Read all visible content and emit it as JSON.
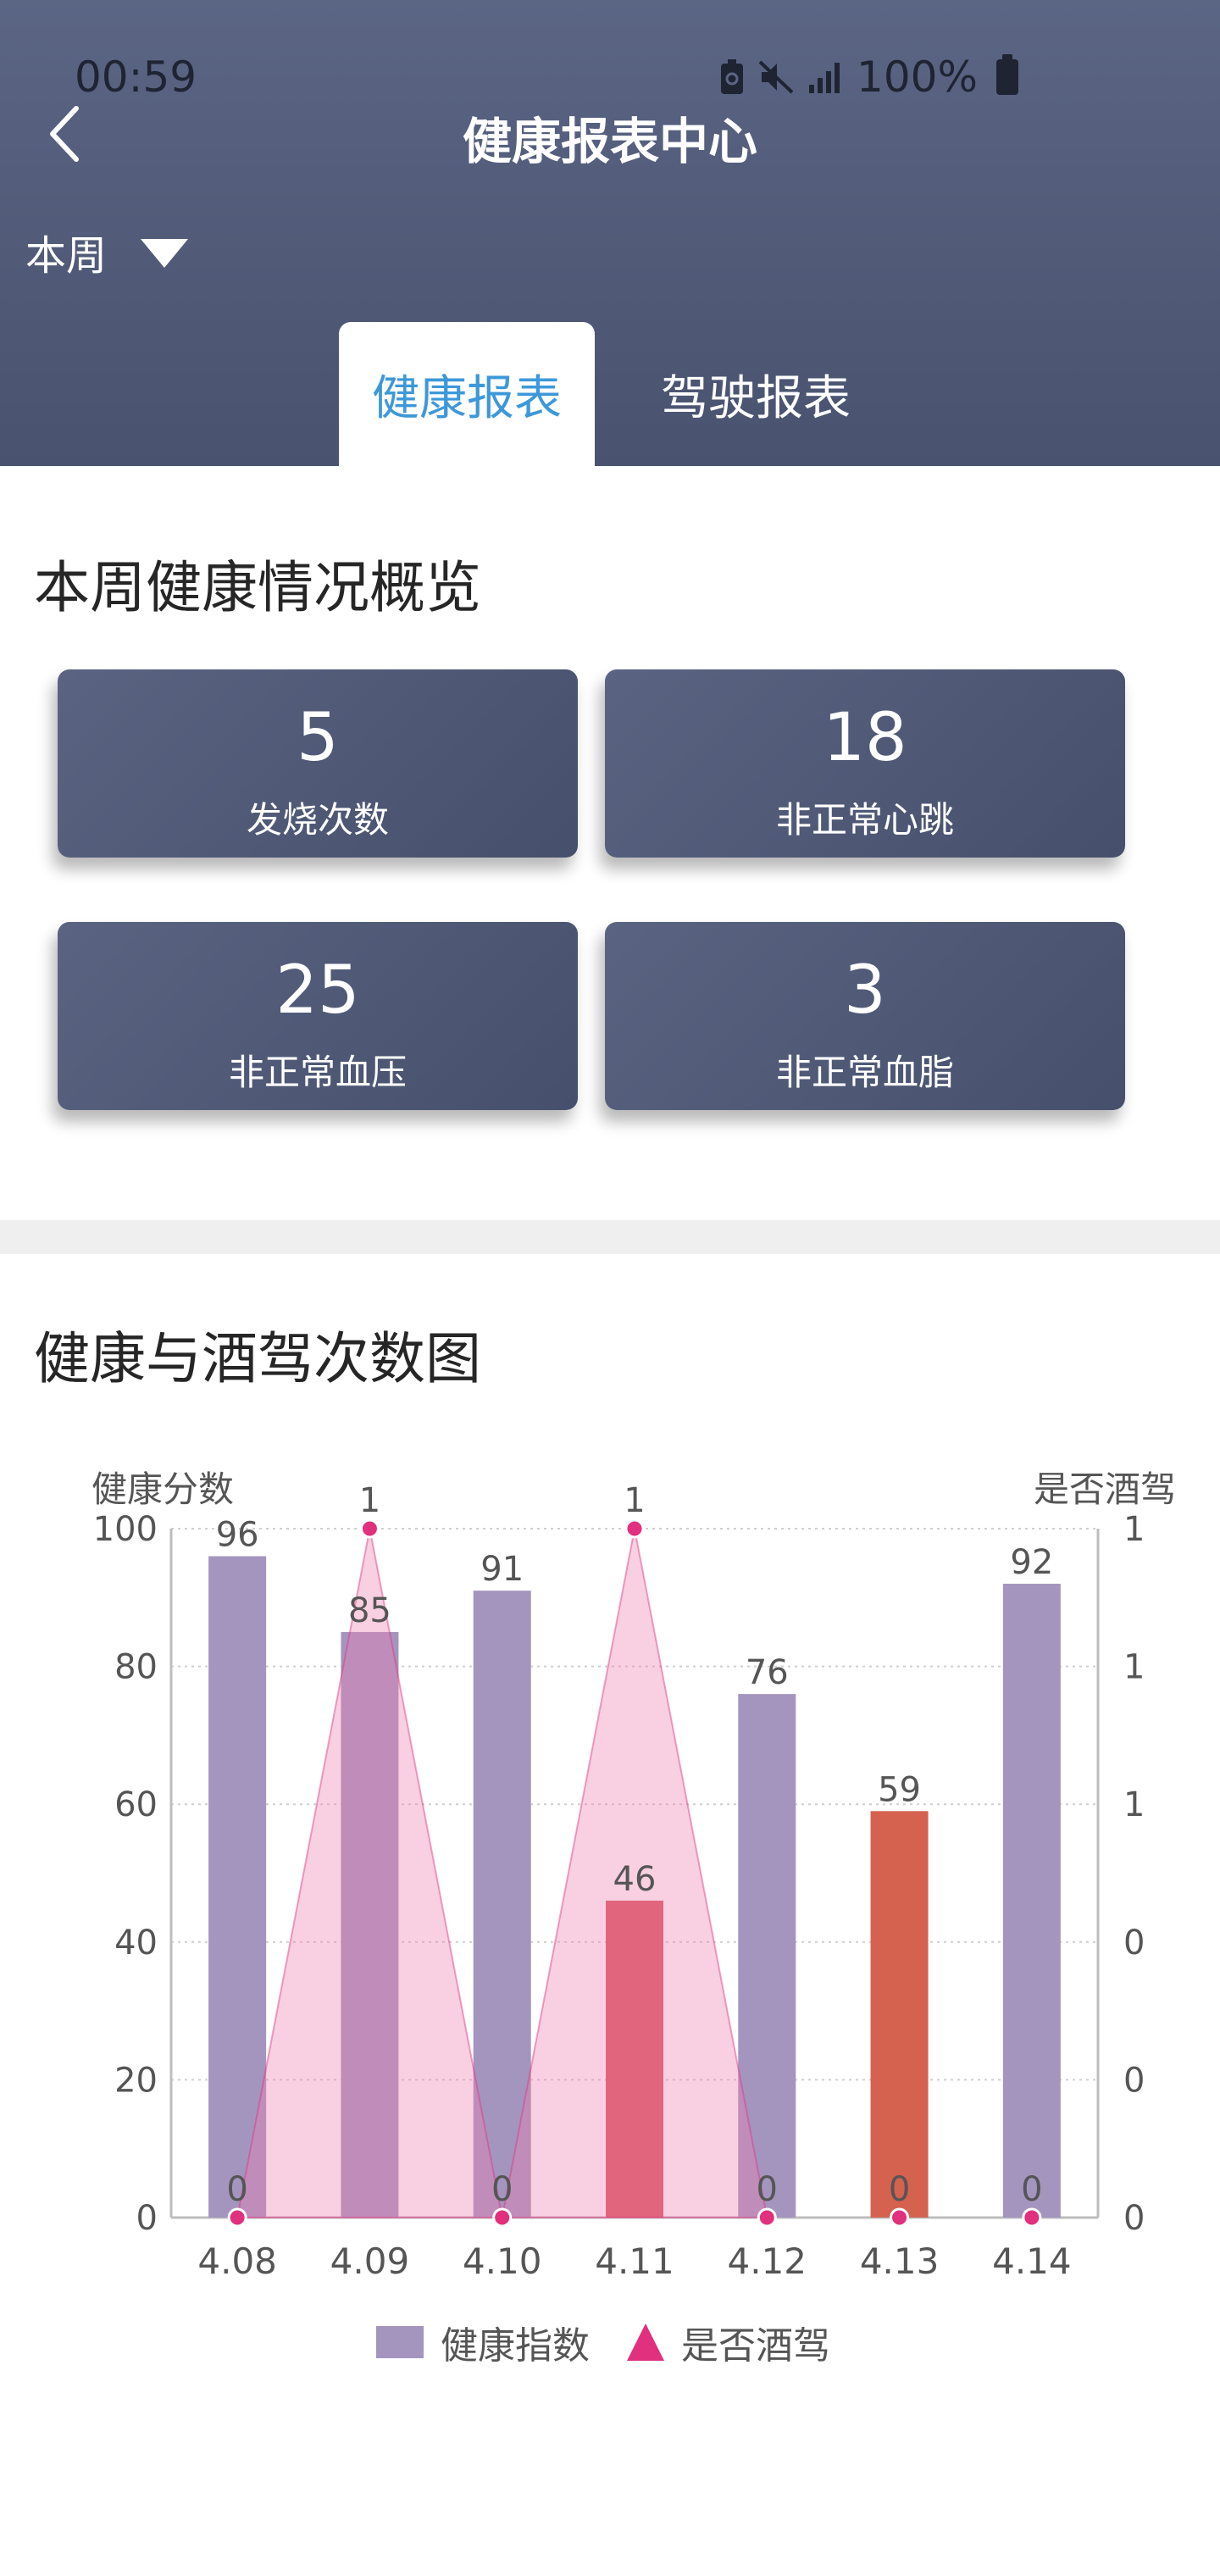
{
  "status_bar": {
    "time": "00:59",
    "battery": "100%",
    "icons": [
      "recycle-icon",
      "mute-icon",
      "signal-icon",
      "battery-icon"
    ]
  },
  "header": {
    "title": "健康报表中心",
    "back_icon": "chevron-left-icon"
  },
  "filter": {
    "period": "本周",
    "dropdown_icon": "triangle-down-icon"
  },
  "tabs": [
    {
      "label": "健康报表",
      "active": true
    },
    {
      "label": "驾驶报表",
      "active": false
    }
  ],
  "overview": {
    "title": "本周健康情况概览",
    "cards": [
      {
        "value": "5",
        "label": "发烧次数"
      },
      {
        "value": "18",
        "label": "非正常心跳"
      },
      {
        "value": "25",
        "label": "非正常血压"
      },
      {
        "value": "3",
        "label": "非正常血脂"
      }
    ]
  },
  "chart_section": {
    "title": "健康与酒驾次数图"
  },
  "chart_data": {
    "type": "bar",
    "categories": [
      "4.08",
      "4.09",
      "4.10",
      "4.11",
      "4.12",
      "4.13",
      "4.14"
    ],
    "series": [
      {
        "name": "健康指数",
        "type": "bar",
        "axis": "left",
        "values": [
          96,
          85,
          91,
          46,
          76,
          59,
          92
        ],
        "colors": [
          "#a495bf",
          "#a495bf",
          "#a495bf",
          "#d9555b",
          "#a495bf",
          "#d5614f",
          "#a495bf"
        ]
      },
      {
        "name": "是否酒驾",
        "type": "area-triangle",
        "axis": "right",
        "values": [
          0,
          1,
          0,
          1,
          0,
          0,
          0
        ],
        "color": "#e0307e"
      }
    ],
    "ylabel": "健康分数",
    "y2label": "是否酒驾",
    "ylim": [
      0,
      100
    ],
    "yticks": [
      "0",
      "20",
      "40",
      "60",
      "80",
      "100"
    ],
    "y2ticks": [
      "0",
      "0",
      "0",
      "1",
      "1",
      "1"
    ],
    "grid": true,
    "legend": "bottom"
  }
}
